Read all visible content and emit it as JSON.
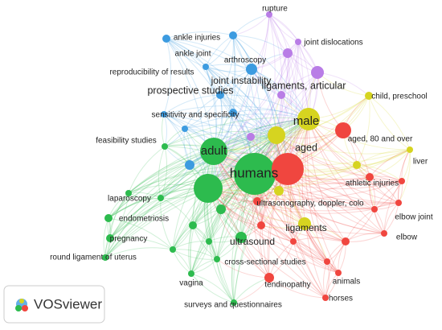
{
  "nodes": [
    {
      "label": "rupture",
      "color": "#b97de6"
    },
    {
      "label": "ankle injuries",
      "color": "#3c9be0"
    },
    {
      "label": "ankle joint",
      "color": "#3c9be0"
    },
    {
      "label": "arthroscopy",
      "color": "#b97de6"
    },
    {
      "label": "joint dislocations",
      "color": "#b97de6"
    },
    {
      "label": "reproducibility of results",
      "color": "#3c9be0"
    },
    {
      "label": "joint instability",
      "color": "#3c9be0"
    },
    {
      "label": "ligaments, articular",
      "color": "#b97de6"
    },
    {
      "label": "prospective studies",
      "color": "#3c9be0"
    },
    {
      "label": "child, preschool",
      "color": "#d6d420"
    },
    {
      "label": "sensitivity and specificity",
      "color": "#3c9be0"
    },
    {
      "label": "male",
      "color": "#d6d420"
    },
    {
      "label": "feasibility studies",
      "color": "#2dbb4e"
    },
    {
      "label": "aged",
      "color": "#d6d420"
    },
    {
      "label": "aged, 80 and over",
      "color": "#f0463f"
    },
    {
      "label": "adult",
      "color": "#2dbb4e"
    },
    {
      "label": "liver",
      "color": "#d6d420"
    },
    {
      "label": "humans",
      "color": "#2dbb4e"
    },
    {
      "label": "athletic injuries",
      "color": "#f0463f"
    },
    {
      "label": "laparoscopy",
      "color": "#2dbb4e"
    },
    {
      "label": "ultrasonography, doppler, colo",
      "color": "#d6d420"
    },
    {
      "label": "elbow joint",
      "color": "#f0463f"
    },
    {
      "label": "endometriosis",
      "color": "#2dbb4e"
    },
    {
      "label": "ligaments",
      "color": "#d6d420"
    },
    {
      "label": "pregnancy",
      "color": "#2dbb4e"
    },
    {
      "label": "elbow",
      "color": "#f0463f"
    },
    {
      "label": "ultrasound",
      "color": "#2dbb4e"
    },
    {
      "label": "round ligament of uterus",
      "color": "#2dbb4e"
    },
    {
      "label": "cross-sectional studies",
      "color": "#2dbb4e"
    },
    {
      "label": "vagina",
      "color": "#2dbb4e"
    },
    {
      "label": "tendinopathy",
      "color": "#f0463f"
    },
    {
      "label": "animals",
      "color": "#f0463f"
    },
    {
      "label": "horses",
      "color": "#f0463f"
    },
    {
      "label": "surveys and questionnaires",
      "color": "#2dbb4e"
    }
  ],
  "logo": {
    "text": "VOSviewer"
  }
}
